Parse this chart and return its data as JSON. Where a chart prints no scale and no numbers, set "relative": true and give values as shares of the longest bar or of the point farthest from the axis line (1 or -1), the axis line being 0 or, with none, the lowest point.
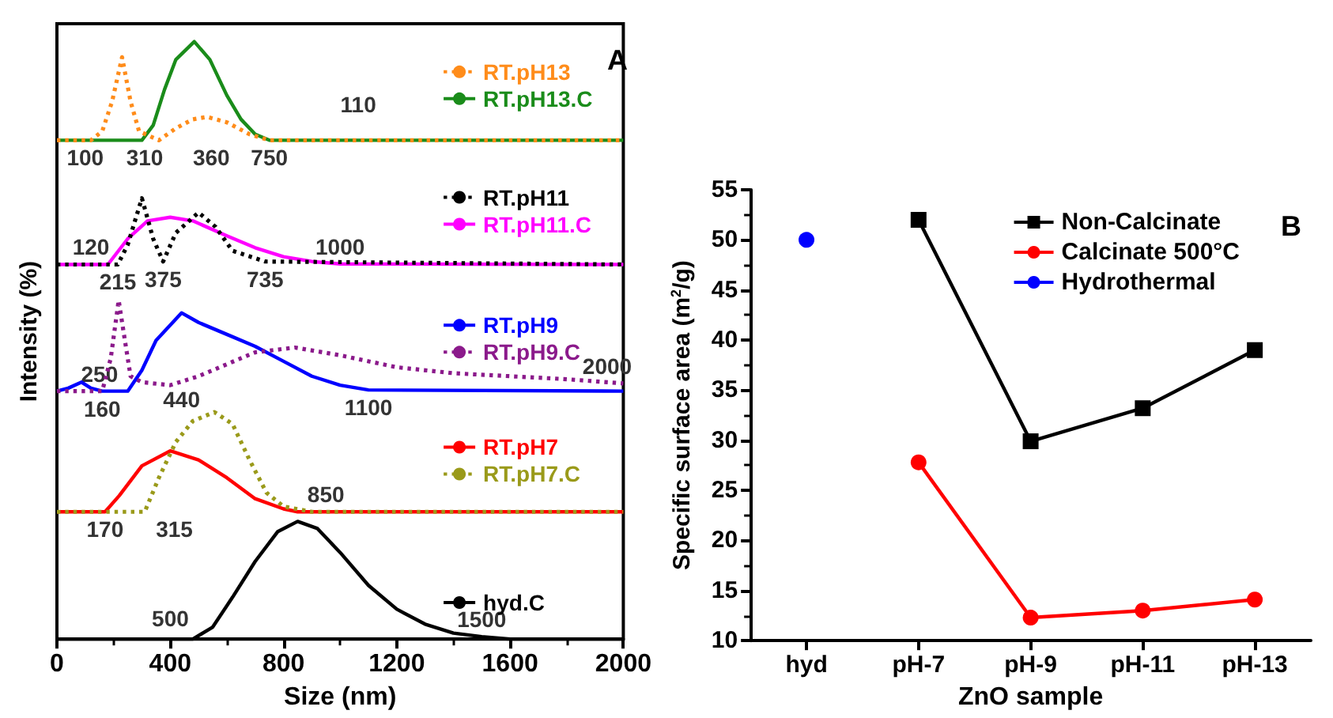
{
  "chart_data": [
    {
      "type": "line",
      "relative": true,
      "xlabel": "Size (nm)",
      "ylabel": "Intensity (%)",
      "xlim": [
        0,
        2000
      ],
      "xticks": [
        0,
        400,
        800,
        1200,
        1600,
        2000
      ],
      "legend": "right",
      "grid": false,
      "series": [
        {
          "name": "RT.pH13",
          "color": "#ff8c1a",
          "line_style": "dotted",
          "x": [
            0,
            120,
            160,
            195,
            230,
            260,
            290,
            360,
            420,
            480,
            530,
            600,
            680,
            750,
            2000
          ],
          "values": [
            0.835,
            0.835,
            0.85,
            0.9,
            0.974,
            0.9,
            0.85,
            0.835,
            0.855,
            0.87,
            0.874,
            0.865,
            0.845,
            0.835,
            0.835
          ]
        },
        {
          "name": "RT.pH13.C",
          "color": "#1a8c1a",
          "line_style": "solid",
          "x": [
            0,
            300,
            340,
            380,
            420,
            485,
            540,
            600,
            650,
            700,
            750,
            2000
          ],
          "values": [
            0.835,
            0.835,
            0.86,
            0.92,
            0.97,
            1,
            0.97,
            0.91,
            0.87,
            0.845,
            0.835,
            0.835
          ]
        },
        {
          "name": "RT.pH11",
          "color": "#000000",
          "line_style": "dotted",
          "x": [
            0,
            215,
            250,
            300,
            340,
            375,
            420,
            500,
            560,
            620,
            735,
            2000
          ],
          "values": [
            0.627,
            0.627,
            0.66,
            0.738,
            0.67,
            0.632,
            0.68,
            0.714,
            0.69,
            0.65,
            0.632,
            0.627
          ]
        },
        {
          "name": "RT.pH11.C",
          "color": "#ff00ff",
          "line_style": "solid",
          "x": [
            0,
            180,
            250,
            320,
            400,
            480,
            600,
            700,
            800,
            900,
            1000,
            2000
          ],
          "values": [
            0.627,
            0.627,
            0.67,
            0.7,
            0.706,
            0.7,
            0.675,
            0.655,
            0.64,
            0.632,
            0.628,
            0.627
          ]
        },
        {
          "name": "RT.pH9",
          "color": "#0000ff",
          "line_style": "solid",
          "x": [
            0,
            40,
            87,
            120,
            160,
            250,
            300,
            350,
            440,
            500,
            600,
            700,
            800,
            900,
            1000,
            1100,
            2000
          ],
          "values": [
            0.415,
            0.42,
            0.43,
            0.42,
            0.415,
            0.415,
            0.45,
            0.5,
            0.546,
            0.53,
            0.51,
            0.49,
            0.465,
            0.44,
            0.425,
            0.417,
            0.415
          ]
        },
        {
          "name": "RT.pH9.C",
          "color": "#8b1a8b",
          "line_style": "dotted",
          "x": [
            0,
            160,
            190,
            218,
            240,
            260,
            300,
            400,
            500,
            600,
            700,
            840,
            1000,
            1200,
            1400,
            1600,
            1800,
            2000
          ],
          "values": [
            0.415,
            0.415,
            0.47,
            0.567,
            0.5,
            0.44,
            0.43,
            0.425,
            0.44,
            0.46,
            0.48,
            0.488,
            0.475,
            0.455,
            0.445,
            0.44,
            0.435,
            0.428
          ]
        },
        {
          "name": "RT.pH7",
          "color": "#ff0000",
          "line_style": "solid",
          "x": [
            0,
            170,
            220,
            300,
            400,
            500,
            600,
            700,
            800,
            850,
            2000
          ],
          "values": [
            0.213,
            0.213,
            0.24,
            0.29,
            0.315,
            0.3,
            0.27,
            0.235,
            0.218,
            0.213,
            0.213
          ]
        },
        {
          "name": "RT.pH7.C",
          "color": "#9a9a1a",
          "line_style": "dotted",
          "x": [
            0,
            310,
            360,
            420,
            480,
            556,
            620,
            680,
            740,
            800,
            900,
            2000
          ],
          "values": [
            0.213,
            0.213,
            0.27,
            0.33,
            0.365,
            0.38,
            0.36,
            0.3,
            0.245,
            0.222,
            0.213,
            0.213
          ]
        },
        {
          "name": "hyd.C",
          "color": "#000000",
          "line_style": "solid",
          "x": [
            0,
            480,
            550,
            620,
            700,
            780,
            850,
            920,
            1000,
            1100,
            1200,
            1300,
            1400,
            1500,
            1600,
            2000
          ],
          "values": [
            0,
            0,
            0.02,
            0.07,
            0.13,
            0.18,
            0.197,
            0.185,
            0.145,
            0.09,
            0.05,
            0.025,
            0.01,
            0.004,
            0,
            0
          ]
        }
      ],
      "annotations": [
        "A",
        "110",
        {
          "text": "310",
          "x": 310,
          "y": 0.835
        },
        {
          "text": "100",
          "x": 100,
          "y": 0.835
        },
        {
          "text": "360",
          "x": 360,
          "y": 0.835
        },
        {
          "text": "750",
          "x": 750,
          "y": 0.835
        },
        {
          "text": "120",
          "x": 120,
          "y": 0.627
        },
        {
          "text": "215",
          "x": 215,
          "y": 0.627
        },
        {
          "text": "375",
          "x": 375,
          "y": 0.632
        },
        {
          "text": "735",
          "x": 735,
          "y": 0.632
        },
        {
          "text": "1000",
          "x": 1000,
          "y": 0.628
        },
        {
          "text": "2000",
          "x": 2000,
          "y": 0.428
        },
        {
          "text": "440",
          "x": 440,
          "y": 0.43
        },
        {
          "text": "160",
          "x": 160,
          "y": 0.415
        },
        {
          "text": "250",
          "x": 250,
          "y": 0.415
        },
        {
          "text": "1100",
          "x": 1100,
          "y": 0.417
        },
        {
          "text": "170",
          "x": 170,
          "y": 0.213
        },
        {
          "text": "850",
          "x": 850,
          "y": 0.213
        },
        {
          "text": "315",
          "x": 315,
          "y": 0.213
        },
        {
          "text": "500",
          "x": 500,
          "y": 0.006
        },
        {
          "text": "1500",
          "x": 1500,
          "y": 0.004
        }
      ]
    },
    {
      "type": "line",
      "xlabel": "ZnO sample",
      "ylabel": "Specific surface area (m$^{2}$/g)",
      "categories": [
        "hyd",
        "pH-7",
        "pH-9",
        "pH-11",
        "pH-13"
      ],
      "ylim": [
        10,
        55
      ],
      "yticks": [
        10,
        15,
        20,
        25,
        30,
        35,
        40,
        45,
        50,
        55
      ],
      "legend": "top right",
      "grid": false,
      "series": [
        {
          "name": "Non-Calcinate",
          "color": "#000000",
          "marker": "square",
          "values": [
            null,
            52,
            29.9,
            33.2,
            39
          ]
        },
        {
          "name": "Calcinate 500°C",
          "color": "#ff0000",
          "marker": "circle",
          "values": [
            null,
            27.8,
            12.3,
            13,
            14.1
          ]
        },
        {
          "name": "Hydrothermal",
          "color": "#0000ff",
          "marker": "circle",
          "values": [
            50,
            null,
            null,
            null,
            null
          ]
        }
      ],
      "annotations": [
        "B"
      ]
    }
  ]
}
